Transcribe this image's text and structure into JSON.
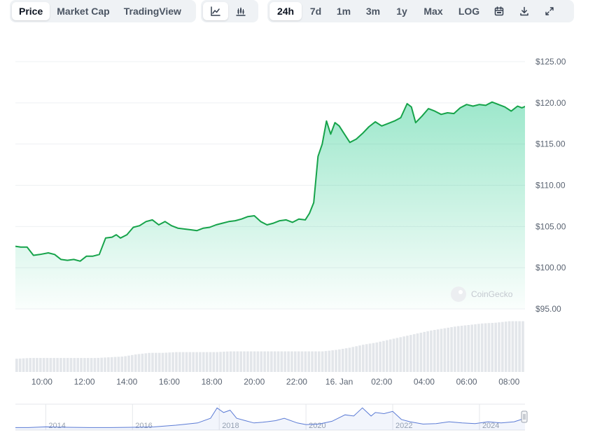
{
  "toolbar": {
    "metric_tabs": [
      "Price",
      "Market Cap",
      "TradingView"
    ],
    "active_metric": "Price",
    "chart_type_icons": [
      "line-chart-icon",
      "candlestick-icon"
    ],
    "active_chart_type": "line-chart-icon",
    "ranges": [
      "24h",
      "7d",
      "1m",
      "3m",
      "1y",
      "Max",
      "LOG"
    ],
    "active_range": "24h",
    "tool_icons": [
      "calendar-icon",
      "download-icon",
      "expand-icon"
    ]
  },
  "watermark": "CoinGecko",
  "colors": {
    "line": "#16a34a",
    "fill_top": "#16c784",
    "volume_bar": "#e3e6ea",
    "navigator_line": "#5b7bd5",
    "grid": "#eef0f3"
  },
  "chart_data": {
    "type": "area",
    "ylim": [
      95,
      125
    ],
    "y_ticks": [
      125,
      120,
      115,
      110,
      105,
      100,
      95
    ],
    "y_tick_labels": [
      "$125.00",
      "$120.00",
      "$115.00",
      "$110.00",
      "$105.00",
      "$100.00",
      "$95.00"
    ],
    "x_ticks": [
      {
        "label": "10:00",
        "hour": 10
      },
      {
        "label": "12:00",
        "hour": 12
      },
      {
        "label": "14:00",
        "hour": 14
      },
      {
        "label": "16:00",
        "hour": 16
      },
      {
        "label": "18:00",
        "hour": 18
      },
      {
        "label": "20:00",
        "hour": 20
      },
      {
        "label": "22:00",
        "hour": 22
      },
      {
        "label": "16. Jan",
        "hour": 24
      },
      {
        "label": "02:00",
        "hour": 26
      },
      {
        "label": "04:00",
        "hour": 28
      },
      {
        "label": "06:00",
        "hour": 30
      },
      {
        "label": "08:00",
        "hour": 32
      }
    ],
    "x_hours": [
      8.75,
      9.0,
      9.3,
      9.6,
      9.9,
      10.3,
      10.6,
      10.9,
      11.2,
      11.5,
      11.8,
      12.1,
      12.4,
      12.7,
      13.0,
      13.3,
      13.5,
      13.7,
      14.0,
      14.3,
      14.6,
      14.9,
      15.2,
      15.5,
      15.8,
      16.1,
      16.4,
      16.7,
      17.0,
      17.3,
      17.6,
      17.9,
      18.2,
      18.5,
      18.8,
      19.1,
      19.4,
      19.7,
      20.0,
      20.3,
      20.6,
      20.9,
      21.2,
      21.5,
      21.8,
      22.1,
      22.4,
      22.6,
      22.8,
      23.0,
      23.2,
      23.4,
      23.6,
      23.8,
      24.0,
      24.2,
      24.5,
      24.8,
      25.1,
      25.4,
      25.7,
      26.0,
      26.3,
      26.6,
      26.9,
      27.2,
      27.4,
      27.6,
      27.9,
      28.2,
      28.5,
      28.8,
      29.1,
      29.4,
      29.7,
      30.0,
      30.3,
      30.6,
      30.9,
      31.2,
      31.5,
      31.8,
      32.1,
      32.4,
      32.6,
      32.8
    ],
    "series": [
      {
        "values": [
          102.6,
          102.5,
          102.5,
          101.5,
          101.6,
          101.8,
          101.6,
          101.0,
          100.9,
          101.0,
          100.8,
          101.4,
          101.4,
          101.6,
          103.6,
          103.7,
          104.0,
          103.6,
          104.0,
          104.9,
          105.1,
          105.6,
          105.8,
          105.2,
          105.6,
          105.1,
          104.8,
          104.7,
          104.6,
          104.5,
          104.8,
          104.9,
          105.2,
          105.4,
          105.6,
          105.7,
          105.9,
          106.2,
          106.3,
          105.6,
          105.2,
          105.4,
          105.7,
          105.8,
          105.5,
          105.9,
          105.8,
          106.6,
          107.9,
          113.5,
          115.0,
          117.8,
          116.2,
          117.6,
          117.2,
          116.4,
          115.2,
          115.6,
          116.3,
          117.1,
          117.7,
          117.2,
          117.5,
          117.8,
          118.2,
          119.9,
          119.5,
          117.6,
          118.4,
          119.3,
          119.0,
          118.6,
          118.8,
          118.7,
          119.4,
          119.8,
          119.6,
          119.8,
          119.7,
          120.1,
          119.8,
          119.5,
          119.0,
          119.6,
          119.4,
          119.6
        ]
      }
    ],
    "volume_levels": [
      0.18,
      0.19,
      0.19,
      0.19,
      0.19,
      0.19,
      0.19,
      0.2,
      0.21,
      0.24,
      0.26,
      0.26,
      0.27,
      0.27,
      0.27,
      0.27,
      0.28,
      0.28,
      0.28,
      0.28,
      0.28,
      0.28,
      0.28,
      0.28,
      0.3,
      0.33,
      0.37,
      0.4,
      0.44,
      0.48,
      0.52,
      0.56,
      0.59,
      0.62,
      0.64,
      0.66,
      0.67,
      0.69,
      0.69
    ],
    "navigator": {
      "labels": [
        "2014",
        "2016",
        "2018",
        "2020",
        "2022",
        "2024"
      ],
      "years": [
        2014,
        2016,
        2018,
        2020,
        2022,
        2024
      ],
      "x_years": [
        2013.3,
        2013.6,
        2014.0,
        2014.5,
        2015.0,
        2015.5,
        2016.0,
        2016.5,
        2017.0,
        2017.5,
        2017.8,
        2017.95,
        2018.1,
        2018.25,
        2018.4,
        2018.6,
        2018.8,
        2019.0,
        2019.3,
        2019.5,
        2019.8,
        2020.0,
        2020.3,
        2020.6,
        2020.9,
        2021.1,
        2021.3,
        2021.5,
        2021.6,
        2021.8,
        2022.0,
        2022.2,
        2022.4,
        2022.7,
        2023.0,
        2023.3,
        2023.6,
        2023.9,
        2024.2,
        2024.5,
        2024.8,
        2025.05
      ],
      "levels": [
        0.05,
        0.05,
        0.08,
        0.06,
        0.05,
        0.05,
        0.06,
        0.08,
        0.15,
        0.25,
        0.45,
        0.9,
        0.7,
        0.8,
        0.45,
        0.35,
        0.25,
        0.28,
        0.35,
        0.45,
        0.25,
        0.18,
        0.2,
        0.32,
        0.6,
        0.55,
        0.9,
        0.55,
        0.7,
        0.65,
        0.75,
        0.4,
        0.3,
        0.2,
        0.22,
        0.3,
        0.25,
        0.22,
        0.3,
        0.25,
        0.3,
        0.45
      ]
    }
  }
}
